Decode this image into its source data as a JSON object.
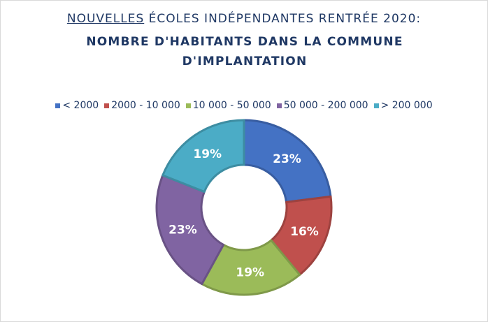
{
  "title": {
    "line1_prefix": "NOUVELLES",
    "line1_rest": " ÉCOLES INDÉPENDANTES RENTRÉE 2020:",
    "line2": "NOMBRE D'HABITANTS DANS LA COMMUNE D'IMPLANTATION"
  },
  "chart_data": {
    "type": "pie",
    "variant": "donut",
    "categories": [
      "< 2000",
      "2000 - 10 000",
      "10 000 - 50 000",
      "50 000 - 200 000",
      "> 200 000"
    ],
    "values": [
      23,
      16,
      19,
      23,
      19
    ],
    "labels": [
      "23%",
      "16%",
      "19%",
      "23%",
      "19%"
    ],
    "colors": [
      "#4472c4",
      "#c0504d",
      "#9bbb59",
      "#8064a2",
      "#4bacc6"
    ],
    "legend_position": "top"
  }
}
